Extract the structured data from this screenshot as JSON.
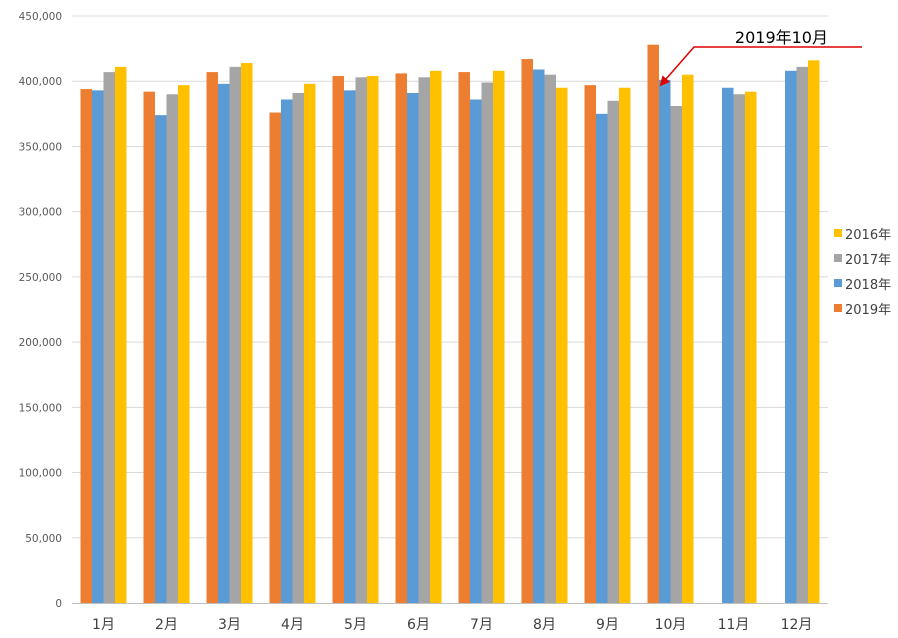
{
  "chart_data": {
    "type": "bar",
    "categories": [
      "1月",
      "2月",
      "3月",
      "4月",
      "5月",
      "6月",
      "7月",
      "8月",
      "9月",
      "10月",
      "11月",
      "12月"
    ],
    "series": [
      {
        "name": "2019年",
        "color": "#ED7D31",
        "values": [
          394000,
          392000,
          407000,
          376000,
          404000,
          406000,
          407000,
          417000,
          397000,
          428000,
          null,
          null
        ]
      },
      {
        "name": "2018年",
        "color": "#5B9BD5",
        "values": [
          393000,
          374000,
          398000,
          386000,
          393000,
          391000,
          386000,
          409000,
          375000,
          401000,
          395000,
          408000
        ]
      },
      {
        "name": "2017年",
        "color": "#A5A5A5",
        "values": [
          407000,
          390000,
          411000,
          391000,
          403000,
          403000,
          399000,
          405000,
          385000,
          381000,
          390000,
          411000
        ]
      },
      {
        "name": "2016年",
        "color": "#FFC000",
        "values": [
          411000,
          397000,
          414000,
          398000,
          404000,
          408000,
          408000,
          395000,
          395000,
          405000,
          392000,
          416000
        ]
      }
    ],
    "ylim": [
      0,
      450000
    ],
    "yticks": [
      0,
      50000,
      100000,
      150000,
      200000,
      250000,
      300000,
      350000,
      400000,
      450000
    ],
    "ytick_labels": [
      "0",
      "50,000",
      "100,000",
      "150,000",
      "200,000",
      "250,000",
      "300,000",
      "350,000",
      "400,000",
      "450,000"
    ],
    "grid": true,
    "legend_position": "right",
    "legend_order": [
      "2016年",
      "2017年",
      "2018年",
      "2019年"
    ],
    "annotation": {
      "text": "2019年10月",
      "series": "2019年",
      "category": "10月",
      "color": "#E00000"
    }
  }
}
